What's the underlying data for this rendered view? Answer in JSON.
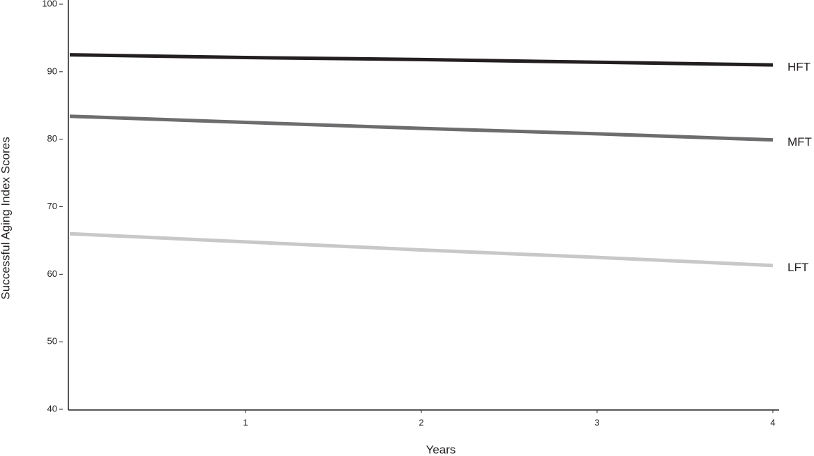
{
  "chart_data": {
    "type": "line",
    "x_label": "Years",
    "y_label": "Successful Aging  Index Scores",
    "x": [
      0,
      1,
      2,
      3,
      4
    ],
    "xlim": [
      0,
      4
    ],
    "xticks": [
      1,
      2,
      3,
      4
    ],
    "ylim": [
      40,
      100
    ],
    "yticks": [
      40,
      50,
      60,
      70,
      80,
      90,
      100
    ],
    "series": [
      {
        "name": "HFT",
        "color": "#231f20",
        "values": [
          92.5,
          92.1,
          91.8,
          91.4,
          91.0
        ]
      },
      {
        "name": "MFT",
        "color": "#6d6d6f",
        "values": [
          83.4,
          82.5,
          81.6,
          80.8,
          79.9
        ]
      },
      {
        "name": "LFT",
        "color": "#c8c8c8",
        "values": [
          66.0,
          64.8,
          63.6,
          62.5,
          61.3
        ]
      }
    ]
  }
}
